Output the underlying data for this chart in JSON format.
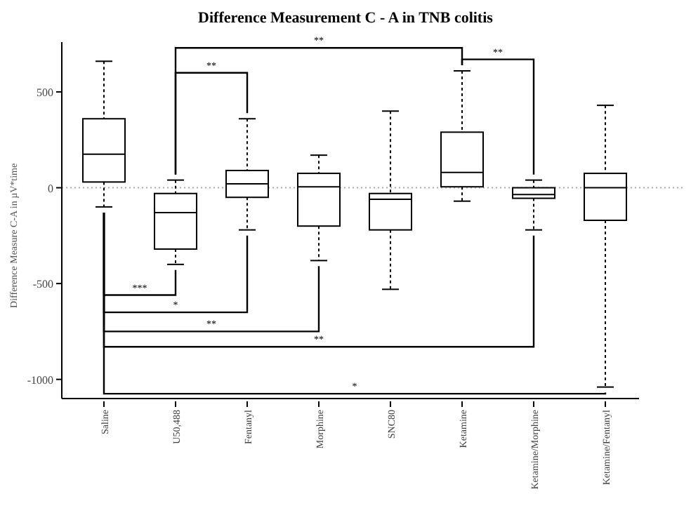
{
  "chart_data": {
    "type": "box",
    "title": "Difference Measurement C - A in TNB colitis",
    "ylabel": "Difference Measure C-A in µV*time",
    "categories": [
      "Saline",
      "U50,488",
      "Fentanyl",
      "Morphine",
      "SNC80",
      "Ketamine",
      "Ketamine/Morphine",
      "Ketamine/Fentanyl"
    ],
    "boxes": [
      {
        "low": -100,
        "q1": 30,
        "median": 175,
        "q3": 360,
        "high": 660
      },
      {
        "low": -400,
        "q1": -320,
        "median": -130,
        "q3": -30,
        "high": 40
      },
      {
        "low": -220,
        "q1": -50,
        "median": 20,
        "q3": 90,
        "high": 360
      },
      {
        "low": -380,
        "q1": -200,
        "median": 5,
        "q3": 75,
        "high": 170
      },
      {
        "low": -530,
        "q1": -220,
        "median": -60,
        "q3": -30,
        "high": 400
      },
      {
        "low": -70,
        "q1": 5,
        "median": 80,
        "q3": 290,
        "high": 610
      },
      {
        "low": -220,
        "q1": -55,
        "median": -35,
        "q3": 0,
        "high": 40
      },
      {
        "low": -1040,
        "q1": -170,
        "median": 0,
        "q3": 75,
        "high": 430
      }
    ],
    "ylim": [
      -1100,
      760
    ],
    "yticks": [
      -1000,
      -500,
      0,
      500
    ],
    "ref_lines": [
      {
        "axis": "y",
        "value": 0,
        "line_style": "dotted",
        "color": "#aaaaaa"
      }
    ],
    "annotations": [
      "**",
      "**",
      "**",
      "***",
      "*",
      "**",
      "**",
      "*"
    ]
  }
}
